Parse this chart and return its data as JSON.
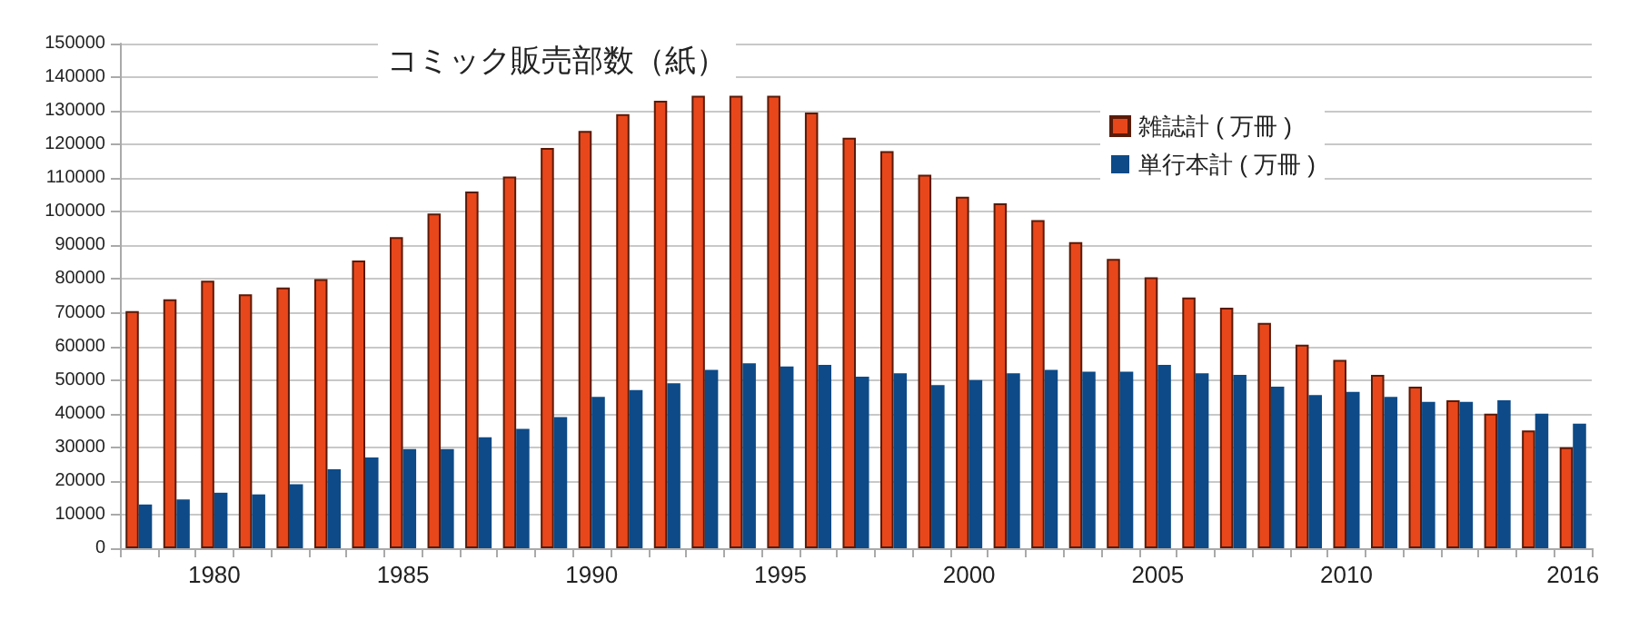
{
  "chart_data": {
    "type": "bar",
    "title": "コミック販売部数（紙）",
    "categories": [
      null,
      null,
      "1980",
      null,
      null,
      null,
      null,
      "1985",
      null,
      null,
      null,
      null,
      "1990",
      null,
      null,
      null,
      null,
      "1995",
      null,
      null,
      null,
      null,
      "2000",
      null,
      null,
      null,
      null,
      "2005",
      null,
      null,
      null,
      null,
      "2010",
      null,
      null,
      null,
      null,
      null,
      "2016"
    ],
    "series": [
      {
        "name": "雑誌計 ( 万冊 )",
        "color": "#e8471b",
        "values": [
          70500,
          74000,
          79500,
          75500,
          77500,
          80000,
          85500,
          92500,
          99500,
          106000,
          110500,
          119000,
          124000,
          129000,
          133000,
          134500,
          134500,
          134500,
          129500,
          122000,
          118000,
          111000,
          104500,
          102500,
          97500,
          91000,
          86000,
          80500,
          74500,
          71500,
          67000,
          60500,
          56000,
          51500,
          48000,
          44000,
          40000,
          35000,
          30000
        ]
      },
      {
        "name": "単行本計 ( 万冊 )",
        "color": "#0d4a87",
        "values": [
          13000,
          14500,
          16500,
          16000,
          19000,
          23500,
          27000,
          29500,
          29500,
          33000,
          35500,
          39000,
          45000,
          47000,
          49000,
          53000,
          55000,
          54000,
          54500,
          51000,
          52000,
          48500,
          50000,
          52000,
          53000,
          52500,
          52500,
          54500,
          52000,
          51500,
          48000,
          45500,
          46500,
          45000,
          43500,
          43500,
          44000,
          40000,
          37000
        ]
      }
    ],
    "ylim": [
      0,
      150000
    ],
    "yticks": [
      0,
      10000,
      20000,
      30000,
      40000,
      50000,
      60000,
      70000,
      80000,
      90000,
      100000,
      110000,
      120000,
      130000,
      140000,
      150000
    ],
    "grid": "y",
    "legend": "top right"
  }
}
